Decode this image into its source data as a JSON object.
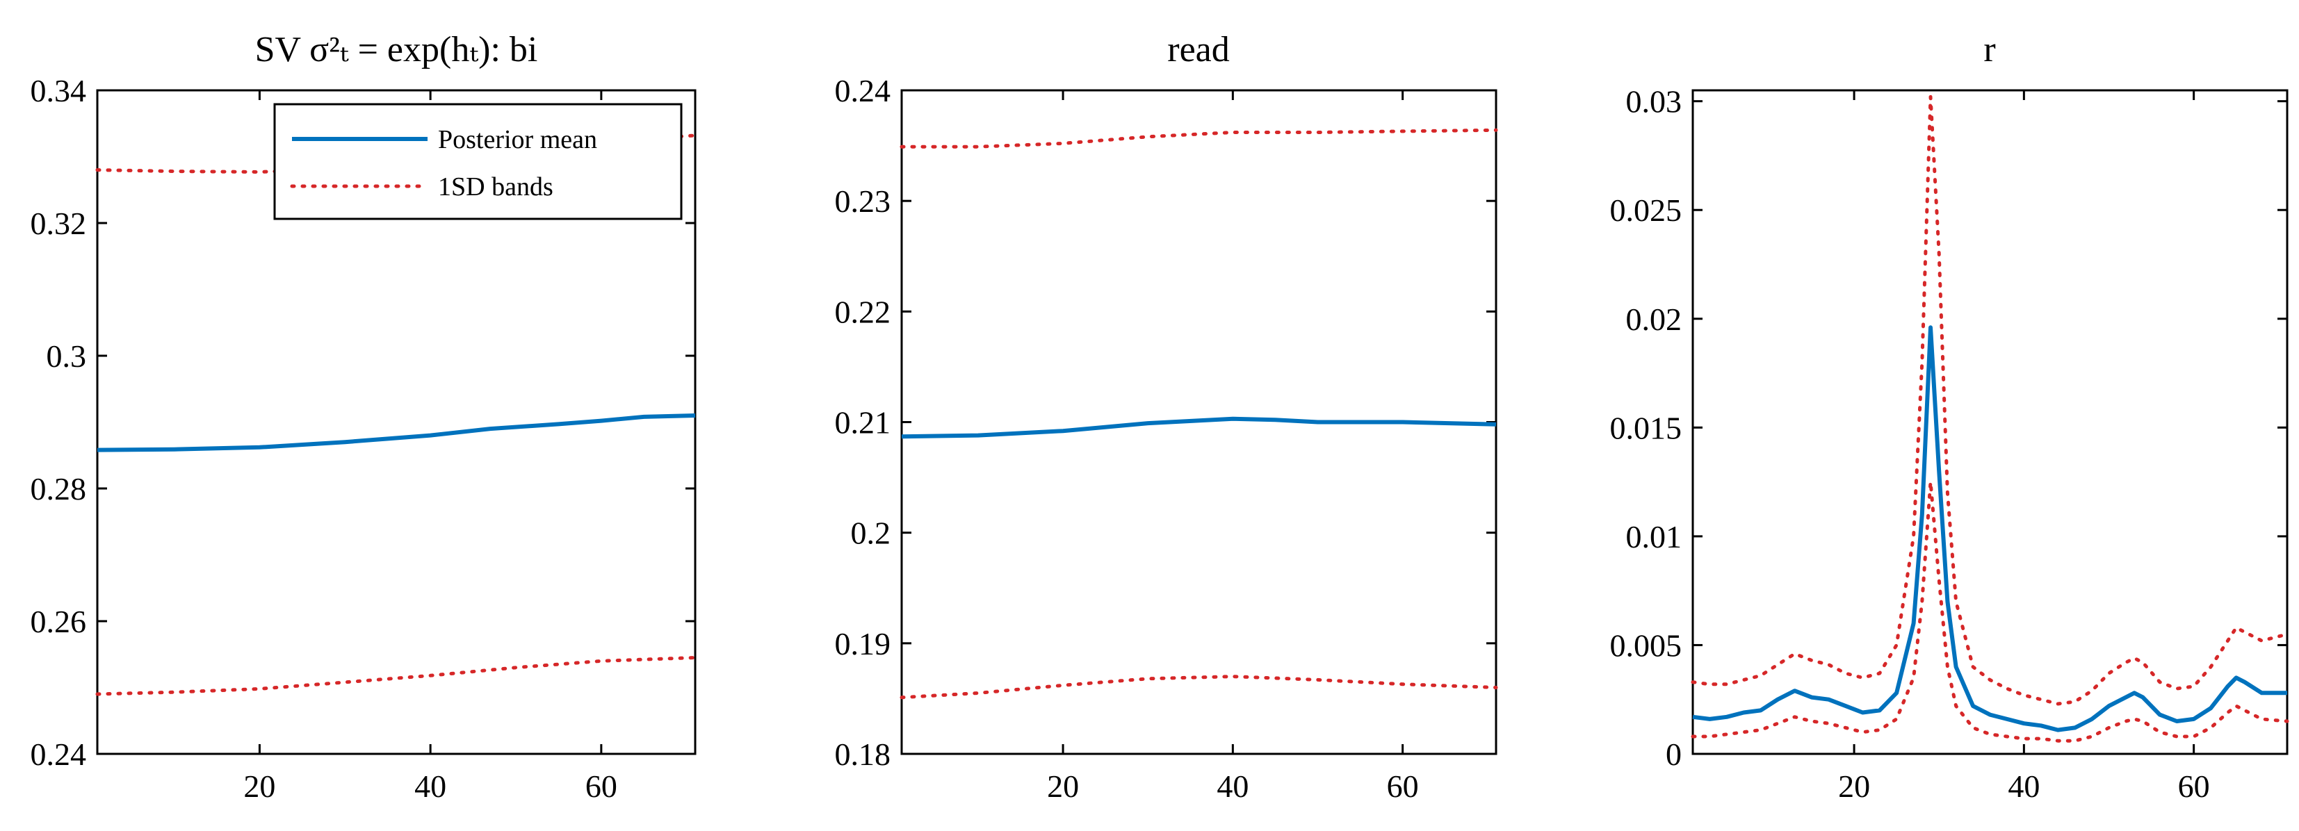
{
  "chart_data": [
    {
      "type": "line",
      "title": "SV σ²ₜ = exp(hₜ): bi",
      "xlabel": "",
      "ylabel": "",
      "xlim": [
        1,
        71
      ],
      "ylim": [
        0.24,
        0.34
      ],
      "x_ticks": [
        20,
        40,
        60
      ],
      "y_ticks": [
        0.24,
        0.26,
        0.28,
        0.3,
        0.32,
        0.34
      ],
      "y_tick_labels": [
        "0.24",
        "0.26",
        "0.28",
        "0.3",
        "0.32",
        "0.34"
      ],
      "grid": false,
      "legend": {
        "position": "top-right",
        "entries": [
          "Posterior mean",
          "1SD bands"
        ]
      },
      "series": [
        {
          "name": "Posterior mean",
          "style": "solid",
          "color": "#0072BD",
          "x": [
            1,
            10,
            20,
            30,
            40,
            47,
            55,
            60,
            65,
            71
          ],
          "values": [
            0.2858,
            0.2859,
            0.2862,
            0.287,
            0.288,
            0.289,
            0.2897,
            0.2902,
            0.2908,
            0.291
          ]
        },
        {
          "name": "1SD bands",
          "style": "dotted",
          "color": "#D62728",
          "x": [
            1,
            10,
            20,
            30,
            40,
            50,
            60,
            71
          ],
          "values": [
            0.328,
            0.3278,
            0.3277,
            0.3282,
            0.3295,
            0.331,
            0.3322,
            0.3332
          ]
        },
        {
          "style": "dotted",
          "color": "#D62728",
          "x": [
            1,
            10,
            20,
            30,
            40,
            50,
            60,
            71
          ],
          "values": [
            0.249,
            0.2493,
            0.2498,
            0.2508,
            0.2518,
            0.253,
            0.254,
            0.2545
          ]
        }
      ]
    },
    {
      "type": "line",
      "title": "read",
      "xlabel": "",
      "ylabel": "",
      "xlim": [
        1,
        71
      ],
      "ylim": [
        0.18,
        0.24
      ],
      "x_ticks": [
        20,
        40,
        60
      ],
      "y_ticks": [
        0.18,
        0.19,
        0.2,
        0.21,
        0.22,
        0.23,
        0.24
      ],
      "y_tick_labels": [
        "0.18",
        "0.19",
        "0.2",
        "0.21",
        "0.22",
        "0.23",
        "0.24"
      ],
      "grid": false,
      "series": [
        {
          "style": "solid",
          "color": "#0072BD",
          "x": [
            1,
            10,
            20,
            30,
            40,
            45,
            50,
            60,
            71
          ],
          "values": [
            0.2087,
            0.2088,
            0.2092,
            0.2099,
            0.2103,
            0.2102,
            0.21,
            0.21,
            0.2098
          ]
        },
        {
          "style": "dotted",
          "color": "#D62728",
          "x": [
            1,
            10,
            20,
            30,
            40,
            50,
            60,
            71
          ],
          "values": [
            0.2349,
            0.2349,
            0.2352,
            0.2358,
            0.2362,
            0.2362,
            0.2363,
            0.2364
          ]
        },
        {
          "style": "dotted",
          "color": "#D62728",
          "x": [
            1,
            10,
            20,
            30,
            40,
            50,
            60,
            71
          ],
          "values": [
            0.1851,
            0.1855,
            0.1862,
            0.1868,
            0.187,
            0.1867,
            0.1863,
            0.186
          ]
        }
      ]
    },
    {
      "type": "line",
      "title": "r",
      "xlabel": "",
      "ylabel": "",
      "xlim": [
        1,
        71
      ],
      "ylim": [
        0,
        0.0305
      ],
      "x_ticks": [
        20,
        40,
        60
      ],
      "y_ticks": [
        0,
        0.005,
        0.01,
        0.015,
        0.02,
        0.025,
        0.03
      ],
      "y_tick_labels": [
        "0",
        "0.005",
        "0.01",
        "0.015",
        "0.02",
        "0.025",
        "0.03"
      ],
      "grid": false,
      "series": [
        {
          "style": "solid",
          "color": "#0072BD",
          "x": [
            1,
            3,
            5,
            7,
            9,
            11,
            13,
            15,
            17,
            19,
            21,
            23,
            25,
            27,
            28,
            29,
            30,
            31,
            32,
            34,
            36,
            38,
            40,
            42,
            44,
            46,
            48,
            50,
            52,
            53,
            54,
            56,
            58,
            60,
            62,
            64,
            65,
            66,
            68,
            71
          ],
          "values": [
            0.0017,
            0.0016,
            0.0017,
            0.0019,
            0.002,
            0.0025,
            0.0029,
            0.0026,
            0.0025,
            0.0022,
            0.0019,
            0.002,
            0.0028,
            0.006,
            0.011,
            0.0196,
            0.013,
            0.007,
            0.004,
            0.0022,
            0.0018,
            0.0016,
            0.0014,
            0.0013,
            0.0011,
            0.0012,
            0.0016,
            0.0022,
            0.0026,
            0.0028,
            0.0026,
            0.0018,
            0.0015,
            0.0016,
            0.0021,
            0.0031,
            0.0035,
            0.0033,
            0.0028,
            0.0028
          ]
        },
        {
          "style": "dotted",
          "color": "#D62728",
          "x": [
            1,
            3,
            5,
            7,
            9,
            11,
            13,
            15,
            17,
            19,
            21,
            23,
            25,
            27,
            28,
            29,
            30,
            31,
            32,
            34,
            36,
            38,
            40,
            42,
            44,
            46,
            48,
            50,
            52,
            53,
            54,
            56,
            58,
            60,
            62,
            64,
            65,
            66,
            68,
            71
          ],
          "values": [
            0.0033,
            0.0032,
            0.0032,
            0.0034,
            0.0036,
            0.0041,
            0.0046,
            0.0043,
            0.0041,
            0.0037,
            0.0035,
            0.0037,
            0.005,
            0.01,
            0.018,
            0.0302,
            0.023,
            0.012,
            0.007,
            0.004,
            0.0034,
            0.003,
            0.0027,
            0.0025,
            0.0023,
            0.0024,
            0.0029,
            0.0037,
            0.0042,
            0.0044,
            0.0042,
            0.0033,
            0.003,
            0.0031,
            0.004,
            0.0052,
            0.0058,
            0.0056,
            0.0052,
            0.0055
          ]
        },
        {
          "style": "dotted",
          "color": "#D62728",
          "x": [
            1,
            3,
            5,
            7,
            9,
            11,
            13,
            15,
            17,
            19,
            21,
            23,
            25,
            27,
            28,
            29,
            30,
            31,
            32,
            34,
            36,
            38,
            40,
            42,
            44,
            46,
            48,
            50,
            52,
            53,
            54,
            56,
            58,
            60,
            62,
            64,
            65,
            66,
            68,
            71
          ],
          "values": [
            0.0008,
            0.0008,
            0.0009,
            0.001,
            0.0011,
            0.0014,
            0.0017,
            0.0015,
            0.0014,
            0.0012,
            0.001,
            0.0011,
            0.0016,
            0.0035,
            0.007,
            0.0125,
            0.008,
            0.004,
            0.0022,
            0.0012,
            0.0009,
            0.0008,
            0.0007,
            0.0007,
            0.0006,
            0.0006,
            0.0008,
            0.0012,
            0.0015,
            0.0016,
            0.0015,
            0.001,
            0.0008,
            0.0008,
            0.0012,
            0.0019,
            0.0022,
            0.002,
            0.0016,
            0.0015
          ]
        }
      ]
    }
  ]
}
